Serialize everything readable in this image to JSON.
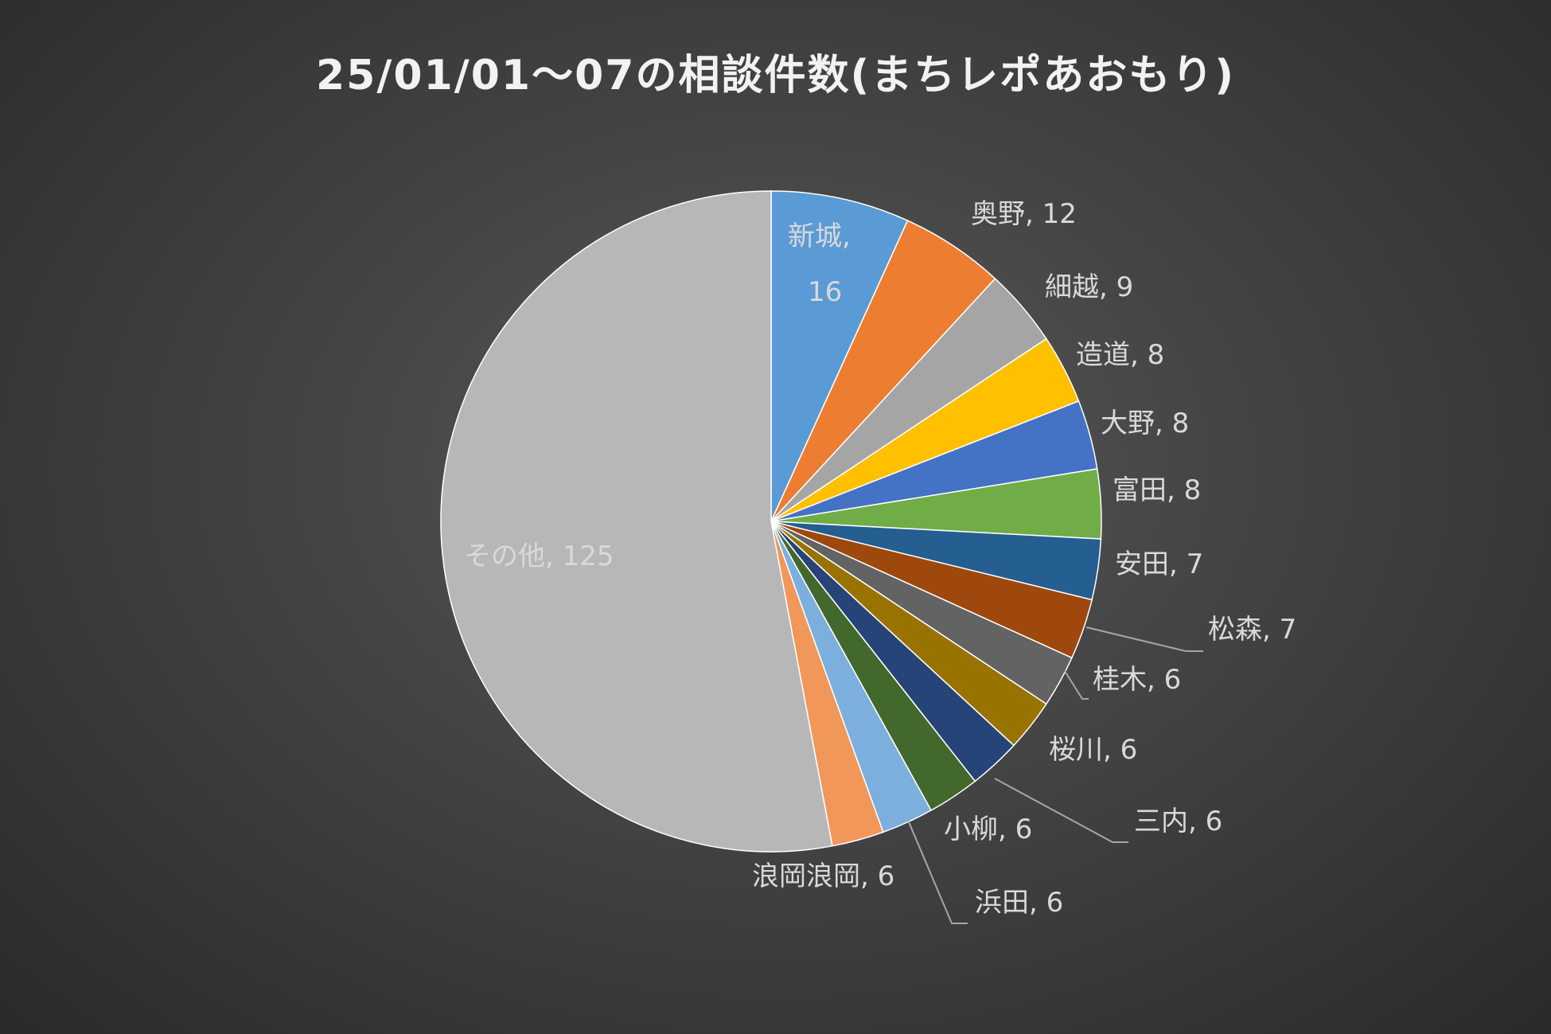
{
  "chart_data": {
    "type": "pie",
    "title": "25/01/01～07の相談件数(まちレポあおもり)",
    "categories": [
      "新城",
      "奥野",
      "細越",
      "造道",
      "大野",
      "富田",
      "安田",
      "松森",
      "桂木",
      "桜川",
      "三内",
      "小柳",
      "浜田",
      "浪岡浪岡",
      "その他"
    ],
    "values": [
      16,
      12,
      9,
      8,
      8,
      8,
      7,
      7,
      6,
      6,
      6,
      6,
      6,
      6,
      125
    ],
    "labels": [
      "新城,",
      "奥野, 12",
      "細越, 9",
      "造道, 8",
      "大野, 8",
      "富田, 8",
      "安田, 7",
      "松森, 7",
      "桂木, 6",
      "桜川, 6",
      "三内, 6",
      "小柳, 6",
      "浜田, 6",
      "浪岡浪岡, 6",
      "その他, 125"
    ],
    "label_second_line": "16",
    "colors": [
      "#5b9bd5",
      "#ed7d31",
      "#a5a5a5",
      "#ffc000",
      "#4472c4",
      "#70ad47",
      "#255e91",
      "#9e480e",
      "#636363",
      "#997300",
      "#264478",
      "#43682b",
      "#7cafdd",
      "#f1975a",
      "#b7b7b7"
    ],
    "start_angle_deg": 0,
    "direction": "clockwise",
    "legend": "none"
  }
}
